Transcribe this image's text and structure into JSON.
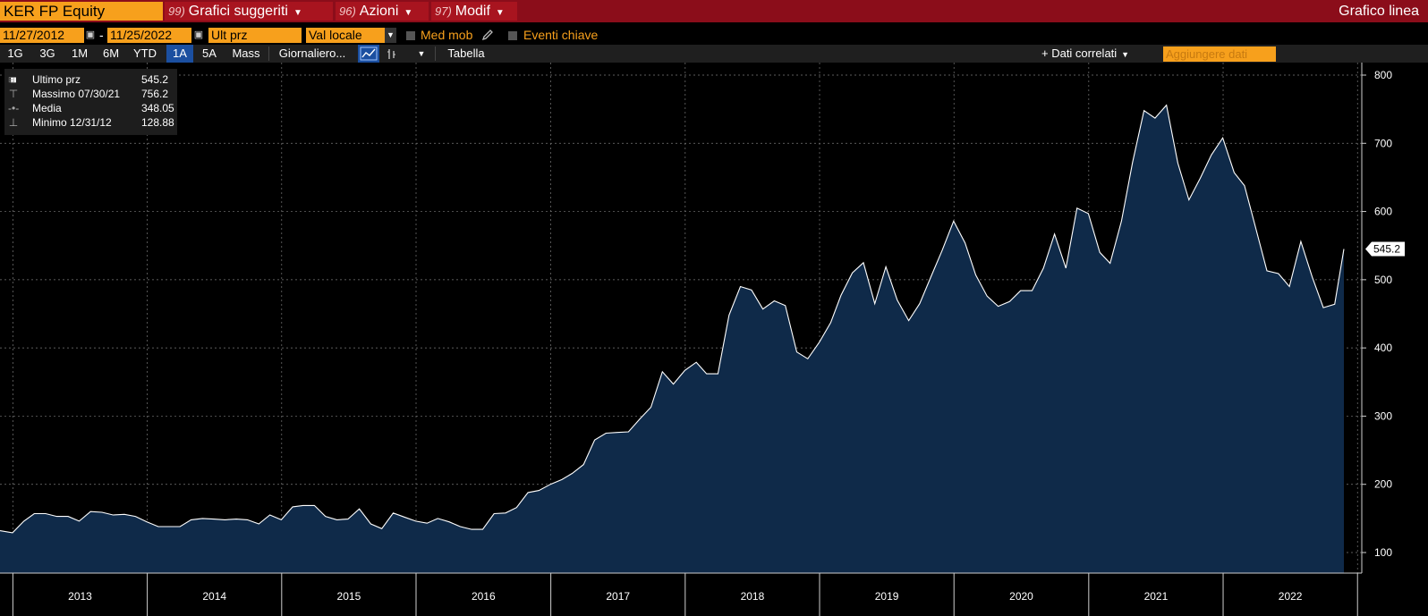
{
  "header": {
    "ticker": "KER FP Equity",
    "menus": [
      {
        "num": "99)",
        "label": "Grafici suggeriti"
      },
      {
        "num": "96)",
        "label": "Azioni"
      },
      {
        "num": "97)",
        "label": "Modif"
      }
    ],
    "right_title": "Grafico linea"
  },
  "params": {
    "start_date": "11/27/2012",
    "end_date": "11/25/2022",
    "dash": "-",
    "field": "Ult prz",
    "currency": "Val locale",
    "moving_avg": "Med mob",
    "key_events": "Eventi chiave"
  },
  "toolbar": {
    "periods": [
      "1G",
      "3G",
      "1M",
      "6M",
      "YTD",
      "1A",
      "5A",
      "Mass"
    ],
    "selected_period": "1A",
    "frequency": "Giornaliero...",
    "table": "Tabella",
    "related_data": "+ Dati correlati",
    "add_data_placeholder": "Aggiungere dati"
  },
  "legend": {
    "items": [
      {
        "label": "Ultimo prz",
        "value": "545.2"
      },
      {
        "label": "Massimo 07/30/21",
        "value": "756.2"
      },
      {
        "label": "Media",
        "value": "348.05"
      },
      {
        "label": "Minimo 12/31/12",
        "value": "128.88"
      }
    ]
  },
  "colors": {
    "header_bg": "#8b0d1a",
    "menu_bg": "#a8141f",
    "ticker_bg": "#f7a01c",
    "field_bg": "#f7a01c",
    "selected_btn": "#1b4fa0",
    "area_fill": "#0f2a49",
    "line": "#ffffff",
    "grid": "#7a7a7a"
  },
  "icons": {
    "calendar": "calendar-icon",
    "dropdown": "chevron-down-icon",
    "pencil": "pencil-icon",
    "line_chart": "line-chart-icon",
    "bar_chart": "bar-chart-icon"
  },
  "chart_data": {
    "type": "area",
    "title": "",
    "xlabel": "",
    "ylabel": "",
    "x_tick_labels": [
      "2013",
      "2014",
      "2015",
      "2016",
      "2017",
      "2018",
      "2019",
      "2020",
      "2021",
      "2022"
    ],
    "y_ticks": [
      100,
      200,
      300,
      400,
      500,
      600,
      700,
      800
    ],
    "ylim": [
      70,
      812
    ],
    "grid": true,
    "last_value_label": "545.2",
    "series": [
      {
        "values": [
          [
            "2012-11-27",
            132
          ],
          [
            "2012-12-31",
            129
          ],
          [
            "2013-01-31",
            146
          ],
          [
            "2013-02-28",
            157
          ],
          [
            "2013-03-31",
            157
          ],
          [
            "2013-04-30",
            153
          ],
          [
            "2013-05-31",
            153
          ],
          [
            "2013-06-30",
            146
          ],
          [
            "2013-07-31",
            160
          ],
          [
            "2013-08-31",
            159
          ],
          [
            "2013-09-30",
            155
          ],
          [
            "2013-10-31",
            156
          ],
          [
            "2013-11-30",
            153
          ],
          [
            "2013-12-31",
            145
          ],
          [
            "2014-01-31",
            138
          ],
          [
            "2014-02-28",
            138
          ],
          [
            "2014-03-31",
            138
          ],
          [
            "2014-04-30",
            148
          ],
          [
            "2014-05-31",
            150
          ],
          [
            "2014-06-30",
            149
          ],
          [
            "2014-07-31",
            148
          ],
          [
            "2014-08-31",
            149
          ],
          [
            "2014-09-30",
            148
          ],
          [
            "2014-10-31",
            142
          ],
          [
            "2014-11-30",
            155
          ],
          [
            "2014-12-31",
            148
          ],
          [
            "2015-01-31",
            167
          ],
          [
            "2015-02-28",
            169
          ],
          [
            "2015-03-31",
            169
          ],
          [
            "2015-04-30",
            153
          ],
          [
            "2015-05-31",
            148
          ],
          [
            "2015-06-30",
            149
          ],
          [
            "2015-07-31",
            164
          ],
          [
            "2015-08-31",
            142
          ],
          [
            "2015-09-30",
            135
          ],
          [
            "2015-10-31",
            158
          ],
          [
            "2015-11-30",
            152
          ],
          [
            "2015-12-31",
            146
          ],
          [
            "2016-01-31",
            143
          ],
          [
            "2016-02-29",
            150
          ],
          [
            "2016-03-31",
            145
          ],
          [
            "2016-04-30",
            138
          ],
          [
            "2016-05-31",
            134
          ],
          [
            "2016-06-30",
            134
          ],
          [
            "2016-07-31",
            157
          ],
          [
            "2016-08-31",
            158
          ],
          [
            "2016-09-30",
            166
          ],
          [
            "2016-10-31",
            188
          ],
          [
            "2016-11-30",
            191
          ],
          [
            "2016-12-31",
            200
          ],
          [
            "2017-01-31",
            207
          ],
          [
            "2017-02-28",
            216
          ],
          [
            "2017-03-31",
            229
          ],
          [
            "2017-04-30",
            265
          ],
          [
            "2017-05-31",
            275
          ],
          [
            "2017-06-30",
            276
          ],
          [
            "2017-07-31",
            277
          ],
          [
            "2017-08-31",
            296
          ],
          [
            "2017-09-30",
            313
          ],
          [
            "2017-10-31",
            365
          ],
          [
            "2017-11-30",
            347
          ],
          [
            "2017-12-31",
            367
          ],
          [
            "2018-01-31",
            379
          ],
          [
            "2018-02-28",
            362
          ],
          [
            "2018-03-31",
            362
          ],
          [
            "2018-04-30",
            448
          ],
          [
            "2018-05-31",
            490
          ],
          [
            "2018-06-30",
            485
          ],
          [
            "2018-07-31",
            457
          ],
          [
            "2018-08-31",
            469
          ],
          [
            "2018-09-30",
            462
          ],
          [
            "2018-10-31",
            394
          ],
          [
            "2018-11-30",
            384
          ],
          [
            "2018-12-31",
            408
          ],
          [
            "2019-01-31",
            437
          ],
          [
            "2019-02-28",
            477
          ],
          [
            "2019-03-31",
            510
          ],
          [
            "2019-04-30",
            525
          ],
          [
            "2019-05-31",
            465
          ],
          [
            "2019-06-30",
            519
          ],
          [
            "2019-07-31",
            470
          ],
          [
            "2019-08-31",
            440
          ],
          [
            "2019-09-30",
            465
          ],
          [
            "2019-10-31",
            505
          ],
          [
            "2019-11-30",
            543
          ],
          [
            "2019-12-31",
            586
          ],
          [
            "2020-01-31",
            554
          ],
          [
            "2020-02-29",
            507
          ],
          [
            "2020-03-31",
            476
          ],
          [
            "2020-04-30",
            461
          ],
          [
            "2020-05-31",
            468
          ],
          [
            "2020-06-30",
            484
          ],
          [
            "2020-07-31",
            484
          ],
          [
            "2020-08-31",
            517
          ],
          [
            "2020-09-30",
            567
          ],
          [
            "2020-10-31",
            517
          ],
          [
            "2020-11-30",
            605
          ],
          [
            "2020-12-31",
            597
          ],
          [
            "2021-01-31",
            540
          ],
          [
            "2021-02-28",
            524
          ],
          [
            "2021-03-31",
            586
          ],
          [
            "2021-04-30",
            672
          ],
          [
            "2021-05-31",
            748
          ],
          [
            "2021-06-30",
            737
          ],
          [
            "2021-07-31",
            756
          ],
          [
            "2021-08-31",
            671
          ],
          [
            "2021-09-30",
            617
          ],
          [
            "2021-10-31",
            649
          ],
          [
            "2021-11-30",
            683
          ],
          [
            "2021-12-31",
            708
          ],
          [
            "2022-01-31",
            657
          ],
          [
            "2022-02-28",
            638
          ],
          [
            "2022-03-31",
            575
          ],
          [
            "2022-04-30",
            513
          ],
          [
            "2022-05-31",
            509
          ],
          [
            "2022-06-30",
            490
          ],
          [
            "2022-07-31",
            556
          ],
          [
            "2022-08-31",
            504
          ],
          [
            "2022-09-30",
            459
          ],
          [
            "2022-10-31",
            464
          ],
          [
            "2022-11-25",
            545
          ]
        ]
      }
    ]
  }
}
